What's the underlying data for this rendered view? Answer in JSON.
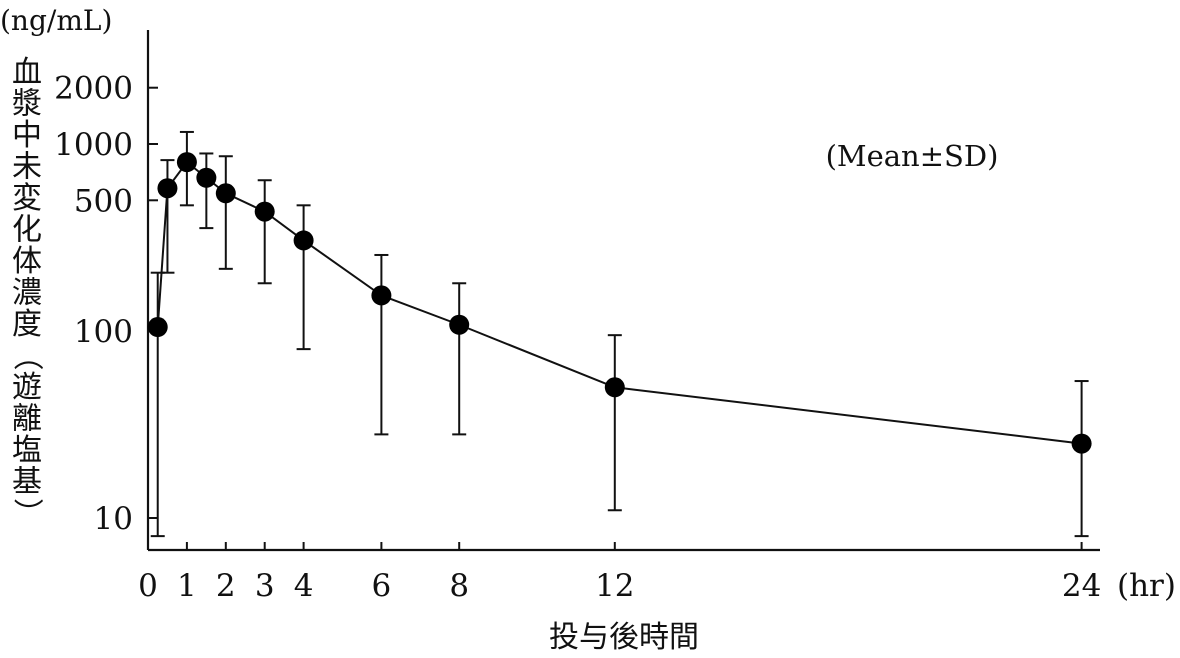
{
  "chart_data": {
    "type": "line",
    "y_scale": "log",
    "y_unit": "(ng/mL)",
    "ylabel": "血漿中未変化体濃度（遊離塩基）",
    "xlabel": "投与後時間",
    "x_unit": "(hr)",
    "annotation": "(Mean±SD)",
    "grid": false,
    "xlim": [
      0,
      24.5
    ],
    "ylim": [
      8,
      3000
    ],
    "x_ticks": [
      0,
      1,
      2,
      3,
      4,
      6,
      8,
      12,
      24
    ],
    "x_tick_labels": [
      "0",
      "1",
      "2",
      "3",
      "4",
      "6",
      "8",
      "12",
      "24"
    ],
    "y_ticks": [
      10,
      100,
      500,
      1000,
      2000
    ],
    "y_tick_labels": [
      "10",
      "100",
      "500",
      "1000",
      "2000"
    ],
    "series": [
      {
        "points": [
          {
            "x": 0.25,
            "y": 105,
            "err_low": 8,
            "err_high": 205
          },
          {
            "x": 0.5,
            "y": 580,
            "err_low": 205,
            "err_high": 820
          },
          {
            "x": 1,
            "y": 800,
            "err_low": 470,
            "err_high": 1160
          },
          {
            "x": 1.5,
            "y": 660,
            "err_low": 355,
            "err_high": 890
          },
          {
            "x": 2,
            "y": 545,
            "err_low": 215,
            "err_high": 860
          },
          {
            "x": 3,
            "y": 435,
            "err_low": 180,
            "err_high": 640
          },
          {
            "x": 4,
            "y": 305,
            "err_low": 80,
            "err_high": 470
          },
          {
            "x": 6,
            "y": 155,
            "err_low": 28,
            "err_high": 255
          },
          {
            "x": 8,
            "y": 108,
            "err_low": 28,
            "err_high": 180
          },
          {
            "x": 12,
            "y": 50,
            "err_low": 11,
            "err_high": 95
          },
          {
            "x": 24,
            "y": 25,
            "err_low": 8,
            "err_high": 54
          }
        ]
      }
    ]
  }
}
